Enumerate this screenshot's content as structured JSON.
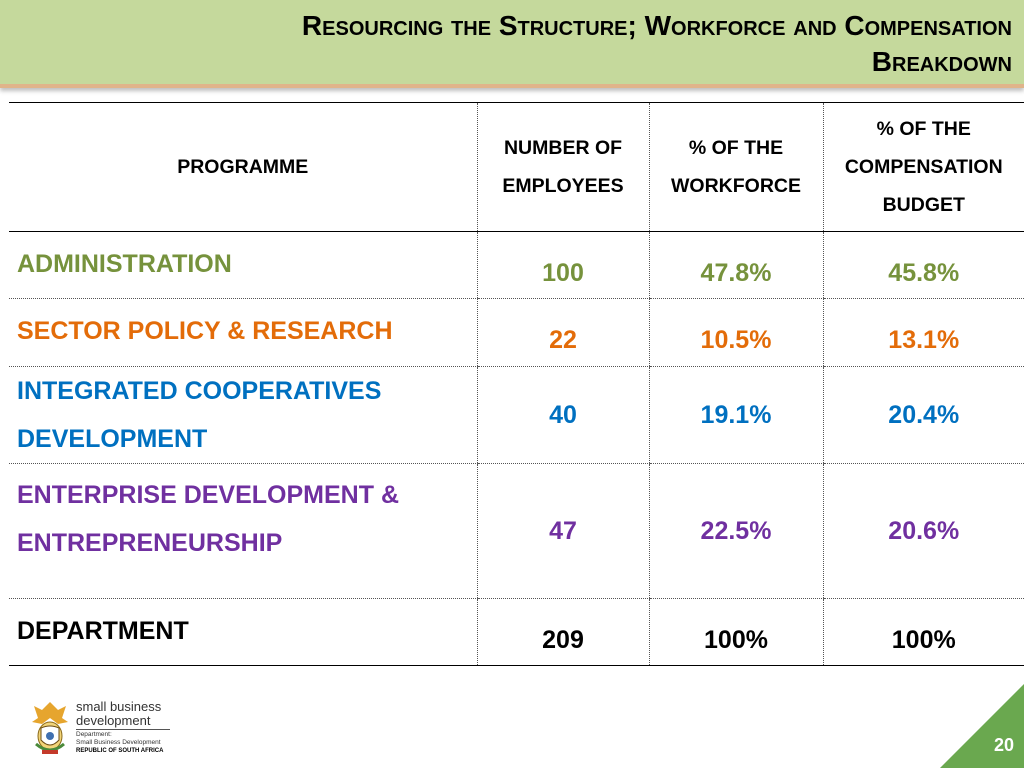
{
  "title": {
    "line1": "Resourcing the Structure; Workforce and Compensation",
    "line2": "Breakdown"
  },
  "table": {
    "headers": {
      "programme": "PROGRAMME",
      "employees_1": "NUMBER OF",
      "employees_2": "EMPLOYEES",
      "workforce_1": "% OF THE",
      "workforce_2": "WORKFORCE",
      "budget_1": "% OF THE",
      "budget_2": "COMPENSATION",
      "budget_3": "BUDGET"
    },
    "rows": [
      {
        "programme_1": "ADMINISTRATION",
        "programme_2": "",
        "employees": "100",
        "workforce": "47.8%",
        "budget": "45.8%",
        "color": "#76923c"
      },
      {
        "programme_1": "SECTOR POLICY & RESEARCH",
        "programme_2": "",
        "employees": "22",
        "workforce": "10.5%",
        "budget": "13.1%",
        "color": "#e36c09"
      },
      {
        "programme_1": "INTEGRATED COOPERATIVES",
        "programme_2": "DEVELOPMENT",
        "employees": "40",
        "workforce": "19.1%",
        "budget": "20.4%",
        "color": "#0070c0"
      },
      {
        "programme_1": "ENTERPRISE DEVELOPMENT &",
        "programme_2": "ENTREPRENEURSHIP",
        "employees": "47",
        "workforce": "22.5%",
        "budget": "20.6%",
        "color": "#7030a0"
      },
      {
        "programme_1": "DEPARTMENT",
        "programme_2": "",
        "employees": "209",
        "workforce": "100%",
        "budget": "100%",
        "color": "#000000"
      }
    ]
  },
  "footer": {
    "logo_name_1": "small business",
    "logo_name_2": "development",
    "logo_dept_1": "Department:",
    "logo_dept_2": "Small Business Development",
    "logo_country": "REPUBLIC OF SOUTH AFRICA",
    "page_number": "20"
  },
  "colors": {
    "title_bar": "#c5d99c",
    "corner": "#6aa84f"
  }
}
